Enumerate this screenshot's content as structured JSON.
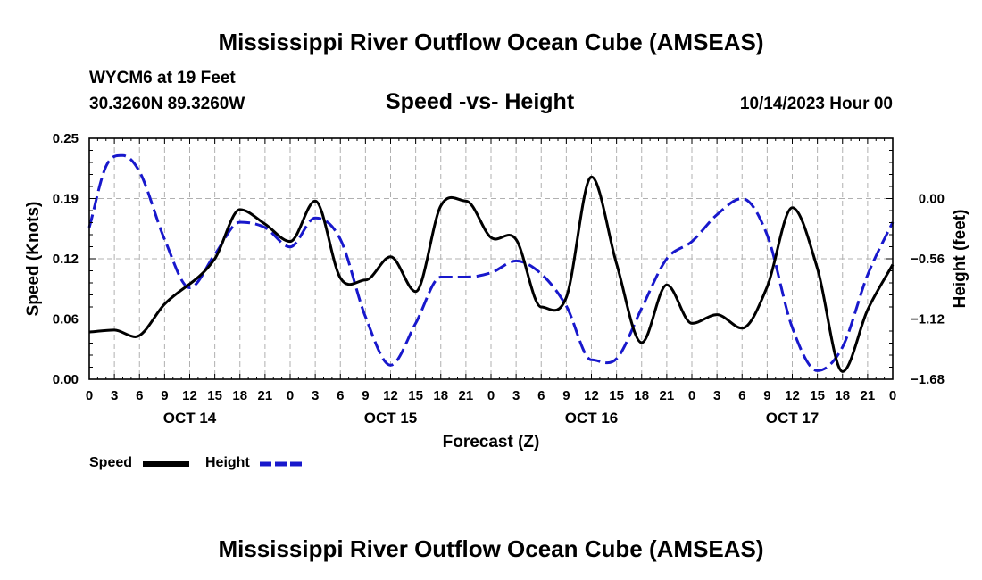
{
  "header": {
    "title_top": "Mississippi River Outflow Ocean Cube (AMSEAS)",
    "title_bottom": "Mississippi River Outflow Ocean Cube (AMSEAS)",
    "station": "WYCM6 at 19 Feet",
    "coords": "30.3260N  89.3260W",
    "datetime": "10/14/2023 Hour 00"
  },
  "legend": {
    "speed_label": "Speed",
    "height_label": "Height"
  },
  "colors": {
    "speed": "#000000",
    "height": "#1818cc",
    "grid": "#b0b0b0"
  },
  "chart_data": {
    "type": "line",
    "title": "Speed -vs- Height",
    "xlabel": "Forecast (Z)",
    "ylabel": "Speed (Knots)",
    "y2label": "Height (feet)",
    "xlim": [
      0,
      96
    ],
    "ylim": [
      0,
      0.25
    ],
    "y2lim": [
      -1.68,
      0.56
    ],
    "x_ticks": [
      0,
      3,
      6,
      9,
      12,
      15,
      18,
      21,
      24,
      27,
      30,
      33,
      36,
      39,
      42,
      45,
      48,
      51,
      54,
      57,
      60,
      63,
      66,
      69,
      72,
      75,
      78,
      81,
      84,
      87,
      90,
      93,
      96
    ],
    "x_tick_labels": [
      "0",
      "3",
      "6",
      "9",
      "12",
      "15",
      "18",
      "21",
      "0",
      "3",
      "6",
      "9",
      "12",
      "15",
      "18",
      "21",
      "0",
      "3",
      "6",
      "9",
      "12",
      "15",
      "18",
      "21",
      "0",
      "3",
      "6",
      "9",
      "12",
      "15",
      "18",
      "21",
      "0"
    ],
    "day_labels": [
      {
        "x": 12,
        "label": "OCT 14"
      },
      {
        "x": 36,
        "label": "OCT 15"
      },
      {
        "x": 60,
        "label": "OCT 16"
      },
      {
        "x": 84,
        "label": "OCT 17"
      }
    ],
    "y_ticks": [
      0,
      0.0625,
      0.125,
      0.1875,
      0.25
    ],
    "y_tick_labels": [
      "0.00",
      "0.06",
      "0.12",
      "0.19",
      "0.25"
    ],
    "y2_ticks": [
      0,
      -0.56,
      -1.12,
      -1.68
    ],
    "y2_tick_labels": [
      "0.00",
      "−0.56",
      "−1.12",
      "−1.68"
    ],
    "series": [
      {
        "name": "Speed",
        "axis": "left",
        "x": [
          0,
          3,
          5.5,
          9,
          15,
          18,
          21,
          24,
          27,
          30,
          33,
          36,
          39,
          42,
          45,
          48,
          51,
          54,
          57,
          60,
          63,
          66,
          69,
          72,
          75,
          78,
          81,
          84,
          87,
          90,
          93,
          96
        ],
        "y": [
          0.049,
          0.051,
          0.044,
          0.078,
          0.125,
          0.176,
          0.161,
          0.143,
          0.185,
          0.105,
          0.103,
          0.127,
          0.091,
          0.18,
          0.185,
          0.147,
          0.145,
          0.075,
          0.085,
          0.21,
          0.12,
          0.038,
          0.098,
          0.058,
          0.067,
          0.053,
          0.096,
          0.178,
          0.115,
          0.008,
          0.072,
          0.119
        ]
      },
      {
        "name": "Height",
        "axis": "right",
        "x": [
          0,
          2,
          4,
          6,
          9,
          12,
          15,
          18,
          21,
          24,
          27,
          30,
          33,
          36,
          39,
          42,
          45,
          48,
          51,
          54,
          57,
          60,
          63,
          66,
          69,
          72,
          75,
          78,
          81,
          84,
          87,
          90,
          93,
          96
        ],
        "y": [
          -0.27,
          0.3,
          0.4,
          0.25,
          -0.38,
          -0.83,
          -0.52,
          -0.22,
          -0.27,
          -0.45,
          -0.18,
          -0.38,
          -1.1,
          -1.55,
          -1.16,
          -0.73,
          -0.73,
          -0.69,
          -0.58,
          -0.7,
          -1.0,
          -1.5,
          -1.49,
          -1.02,
          -0.56,
          -0.4,
          -0.15,
          0.0,
          -0.34,
          -1.2,
          -1.6,
          -1.38,
          -0.71,
          -0.22
        ]
      }
    ]
  }
}
